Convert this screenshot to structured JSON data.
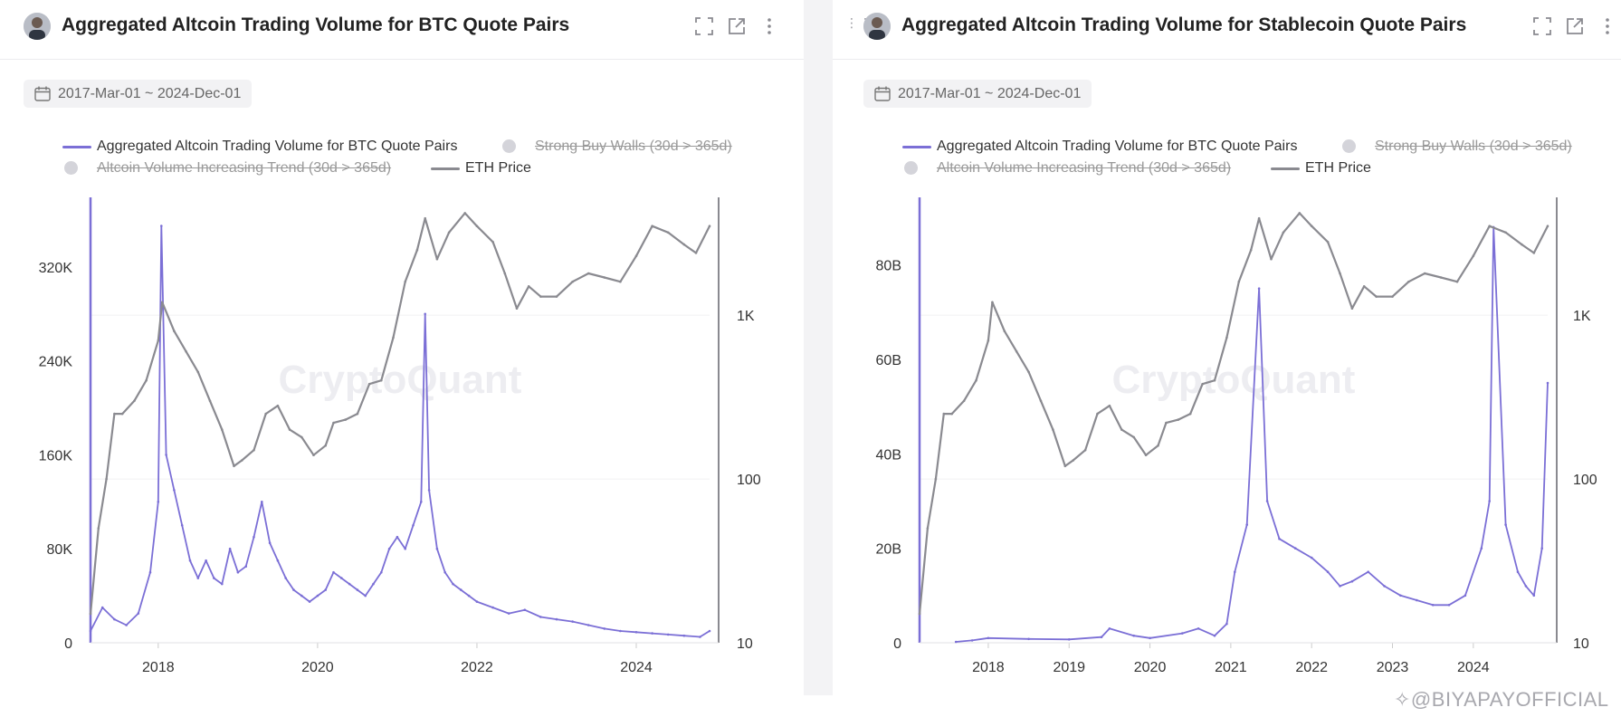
{
  "credit": "✧@BIYAPAYOFFICIAL",
  "chart_data": [
    {
      "type": "line",
      "title": "Aggregated Altcoin Trading Volume for BTC Quote Pairs",
      "date_range": "2017-Mar-01 ~ 2024-Dec-01",
      "watermark": "CryptoQuant",
      "legend": [
        {
          "label": "Aggregated Altcoin Trading Volume for BTC Quote Pairs",
          "active": true,
          "color": "#7b6fd6"
        },
        {
          "label": "Strong Buy Walls (30d > 365d)",
          "active": false,
          "color": "#d4d4da"
        },
        {
          "label": "Altcoin Volume Increasing Trend (30d > 365d)",
          "active": false,
          "color": "#d4d4da"
        },
        {
          "label": "ETH Price",
          "active": true,
          "color": "#8a8a90"
        }
      ],
      "x_ticks": [
        "2018",
        "2020",
        "2022",
        "2024"
      ],
      "y_left_ticks": [
        "0",
        "80K",
        "160K",
        "240K",
        "320K"
      ],
      "y_right_ticks": [
        "10",
        "100",
        "1K"
      ],
      "y_left_range": [
        0,
        370000
      ],
      "y_right_range_log": [
        10,
        4500
      ],
      "x_range": [
        2017.15,
        2024.92
      ],
      "series": [
        {
          "name": "Aggregated Altcoin Trading Volume for BTC Quote Pairs",
          "axis": "left",
          "x": [
            2017.15,
            2017.3,
            2017.45,
            2017.6,
            2017.75,
            2017.9,
            2018.0,
            2018.04,
            2018.1,
            2018.2,
            2018.3,
            2018.4,
            2018.5,
            2018.6,
            2018.7,
            2018.8,
            2018.9,
            2019.0,
            2019.1,
            2019.2,
            2019.3,
            2019.4,
            2019.5,
            2019.6,
            2019.7,
            2019.8,
            2019.9,
            2020.0,
            2020.1,
            2020.2,
            2020.3,
            2020.4,
            2020.5,
            2020.6,
            2020.7,
            2020.8,
            2020.9,
            2021.0,
            2021.1,
            2021.2,
            2021.3,
            2021.35,
            2021.4,
            2021.5,
            2021.6,
            2021.7,
            2021.8,
            2021.9,
            2022.0,
            2022.2,
            2022.4,
            2022.6,
            2022.8,
            2023.0,
            2023.2,
            2023.4,
            2023.6,
            2023.8,
            2024.0,
            2024.2,
            2024.4,
            2024.6,
            2024.8,
            2024.92
          ],
          "values": [
            10000,
            30000,
            20000,
            15000,
            25000,
            60000,
            120000,
            355000,
            160000,
            130000,
            100000,
            70000,
            55000,
            70000,
            55000,
            50000,
            80000,
            60000,
            65000,
            90000,
            120000,
            85000,
            70000,
            55000,
            45000,
            40000,
            35000,
            40000,
            45000,
            60000,
            55000,
            50000,
            45000,
            40000,
            50000,
            60000,
            80000,
            90000,
            80000,
            100000,
            120000,
            280000,
            130000,
            80000,
            60000,
            50000,
            45000,
            40000,
            35000,
            30000,
            25000,
            28000,
            22000,
            20000,
            18000,
            15000,
            12000,
            10000,
            9000,
            8000,
            7000,
            6000,
            5000,
            10000
          ]
        },
        {
          "name": "ETH Price",
          "axis": "right",
          "x": [
            2017.15,
            2017.25,
            2017.35,
            2017.45,
            2017.55,
            2017.7,
            2017.85,
            2018.0,
            2018.05,
            2018.2,
            2018.35,
            2018.5,
            2018.65,
            2018.8,
            2018.95,
            2019.05,
            2019.2,
            2019.35,
            2019.5,
            2019.65,
            2019.8,
            2019.95,
            2020.1,
            2020.2,
            2020.35,
            2020.5,
            2020.65,
            2020.8,
            2020.95,
            2021.1,
            2021.25,
            2021.35,
            2021.5,
            2021.65,
            2021.85,
            2022.0,
            2022.2,
            2022.35,
            2022.5,
            2022.65,
            2022.8,
            2023.0,
            2023.2,
            2023.4,
            2023.6,
            2023.8,
            2024.0,
            2024.2,
            2024.4,
            2024.6,
            2024.75,
            2024.92
          ],
          "values": [
            15,
            50,
            100,
            250,
            250,
            300,
            400,
            700,
            1200,
            800,
            600,
            450,
            300,
            200,
            120,
            130,
            150,
            250,
            280,
            200,
            180,
            140,
            160,
            220,
            230,
            250,
            380,
            400,
            730,
            1600,
            2500,
            3900,
            2200,
            3200,
            4200,
            3500,
            2800,
            1800,
            1100,
            1500,
            1300,
            1300,
            1600,
            1800,
            1700,
            1600,
            2300,
            3500,
            3200,
            2700,
            2400,
            3500
          ]
        }
      ]
    },
    {
      "type": "line",
      "title": "Aggregated Altcoin Trading Volume for Stablecoin Quote Pairs",
      "date_range": "2017-Mar-01 ~ 2024-Dec-01",
      "watermark": "CryptoQuant",
      "legend": [
        {
          "label": "Aggregated Altcoin Trading Volume for BTC Quote Pairs",
          "active": true,
          "color": "#7b6fd6"
        },
        {
          "label": "Strong Buy Walls (30d > 365d)",
          "active": false,
          "color": "#d4d4da"
        },
        {
          "label": "Altcoin Volume Increasing Trend (30d > 365d)",
          "active": false,
          "color": "#d4d4da"
        },
        {
          "label": "ETH Price",
          "active": true,
          "color": "#8a8a90"
        }
      ],
      "x_ticks": [
        "2018",
        "2019",
        "2020",
        "2021",
        "2022",
        "2023",
        "2024"
      ],
      "y_left_ticks": [
        "0",
        "20B",
        "40B",
        "60B",
        "80B"
      ],
      "y_right_ticks": [
        "10",
        "100",
        "1K"
      ],
      "y_left_range": [
        0,
        92000000000
      ],
      "y_right_range_log": [
        10,
        4500
      ],
      "x_range": [
        2017.15,
        2024.92
      ],
      "series": [
        {
          "name": "Aggregated Altcoin Trading Volume for BTC Quote Pairs",
          "axis": "left",
          "x": [
            2017.6,
            2017.8,
            2018.0,
            2018.5,
            2019.0,
            2019.4,
            2019.5,
            2019.8,
            2020.0,
            2020.4,
            2020.6,
            2020.8,
            2020.95,
            2021.05,
            2021.2,
            2021.35,
            2021.45,
            2021.6,
            2021.8,
            2022.0,
            2022.2,
            2022.35,
            2022.5,
            2022.7,
            2022.9,
            2023.1,
            2023.3,
            2023.5,
            2023.7,
            2023.9,
            2024.1,
            2024.2,
            2024.25,
            2024.4,
            2024.55,
            2024.65,
            2024.75,
            2024.85,
            2024.92
          ],
          "values": [
            200000000,
            500000000,
            1000000000,
            800000000,
            700000000,
            1200000000,
            3000000000,
            1500000000,
            1000000000,
            2000000000,
            3000000000,
            1500000000,
            4000000000,
            15000000000,
            25000000000,
            75000000000,
            30000000000,
            22000000000,
            20000000000,
            18000000000,
            15000000000,
            12000000000,
            13000000000,
            15000000000,
            12000000000,
            10000000000,
            9000000000,
            8000000000,
            8000000000,
            10000000000,
            20000000000,
            30000000000,
            88000000000,
            25000000000,
            15000000000,
            12000000000,
            10000000000,
            20000000000,
            55000000000
          ]
        },
        {
          "name": "ETH Price",
          "axis": "right",
          "x": [
            2017.15,
            2017.25,
            2017.35,
            2017.45,
            2017.55,
            2017.7,
            2017.85,
            2018.0,
            2018.05,
            2018.2,
            2018.35,
            2018.5,
            2018.65,
            2018.8,
            2018.95,
            2019.05,
            2019.2,
            2019.35,
            2019.5,
            2019.65,
            2019.8,
            2019.95,
            2020.1,
            2020.2,
            2020.35,
            2020.5,
            2020.65,
            2020.8,
            2020.95,
            2021.1,
            2021.25,
            2021.35,
            2021.5,
            2021.65,
            2021.85,
            2022.0,
            2022.2,
            2022.35,
            2022.5,
            2022.65,
            2022.8,
            2023.0,
            2023.2,
            2023.4,
            2023.6,
            2023.8,
            2024.0,
            2024.2,
            2024.4,
            2024.6,
            2024.75,
            2024.92
          ],
          "values": [
            15,
            50,
            100,
            250,
            250,
            300,
            400,
            700,
            1200,
            800,
            600,
            450,
            300,
            200,
            120,
            130,
            150,
            250,
            280,
            200,
            180,
            140,
            160,
            220,
            230,
            250,
            380,
            400,
            730,
            1600,
            2500,
            3900,
            2200,
            3200,
            4200,
            3500,
            2800,
            1800,
            1100,
            1500,
            1300,
            1300,
            1600,
            1800,
            1700,
            1600,
            2300,
            3500,
            3200,
            2700,
            2400,
            3500
          ]
        }
      ]
    }
  ]
}
